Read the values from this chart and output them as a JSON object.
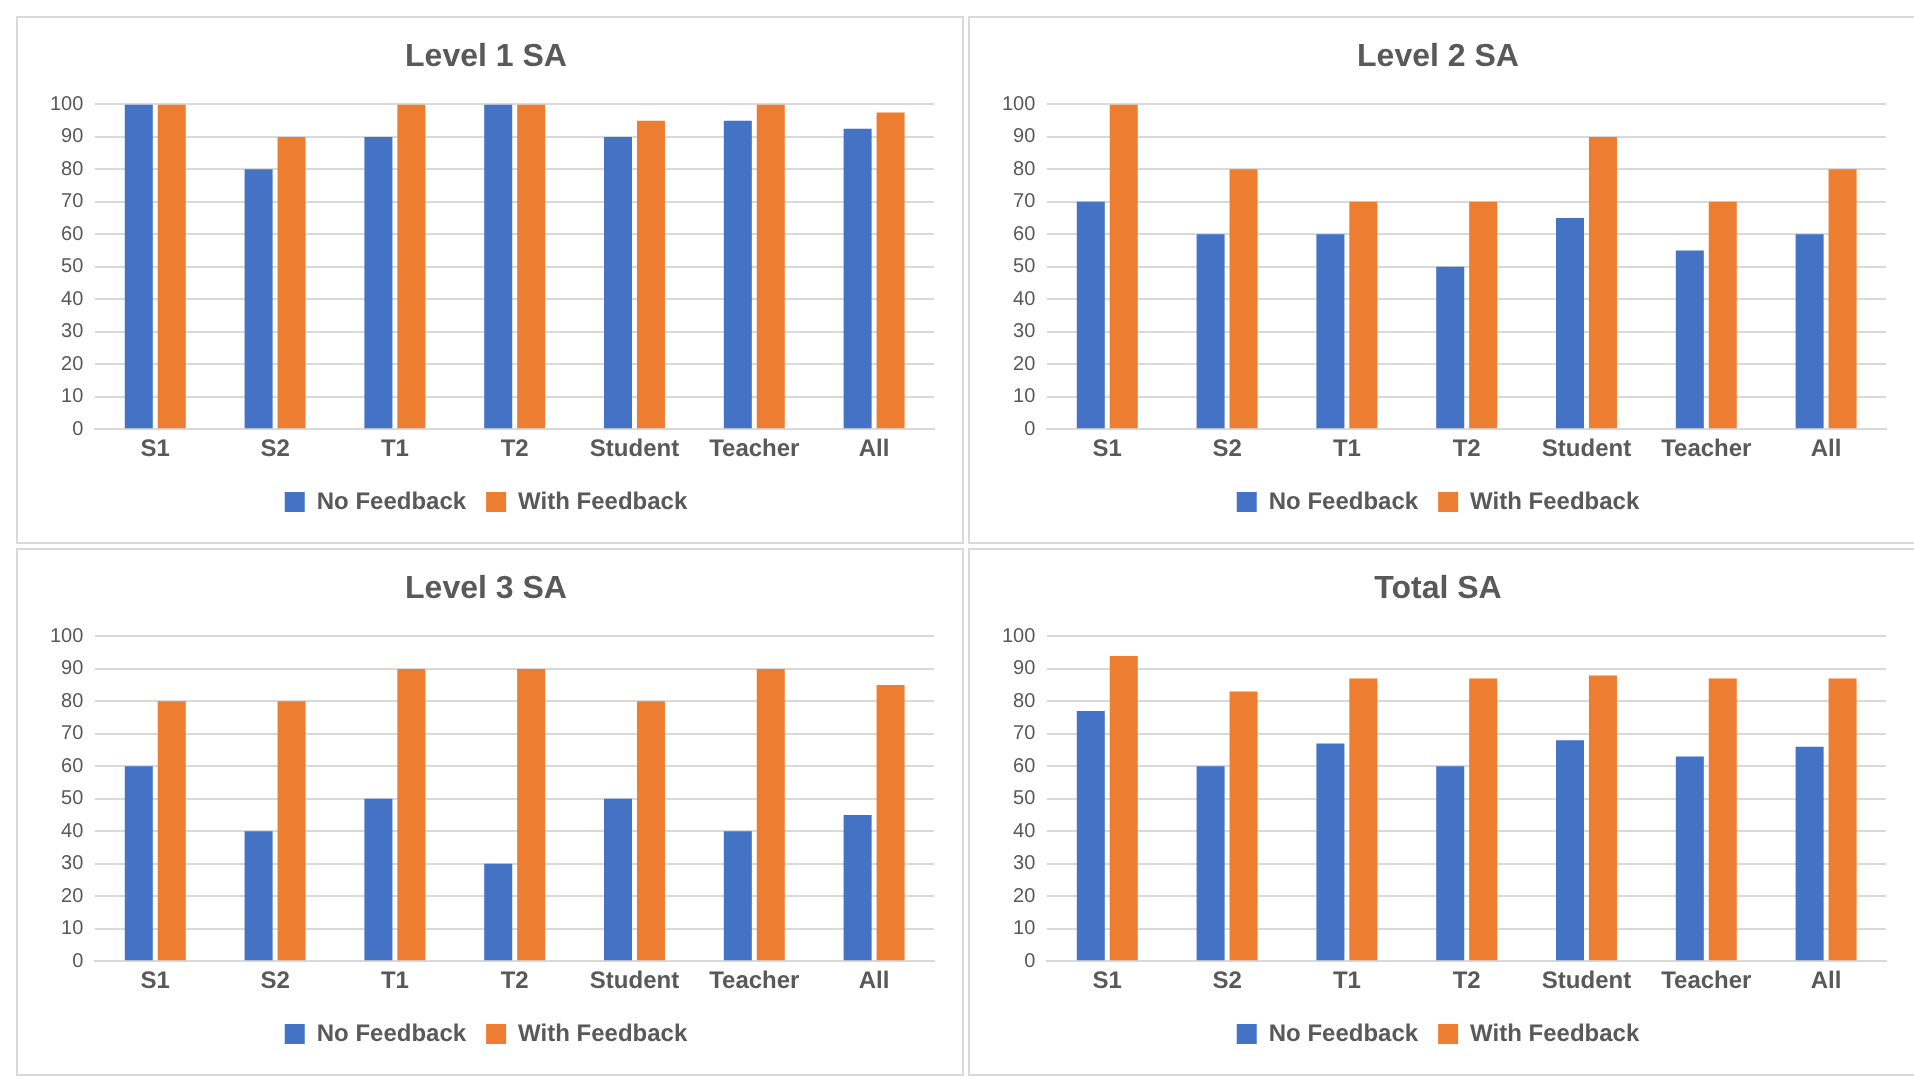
{
  "chart_data": [
    {
      "type": "bar",
      "title": "Level 1 SA",
      "categories": [
        "S1",
        "S2",
        "T1",
        "T2",
        "Student",
        "Teacher",
        "All"
      ],
      "series": [
        {
          "name": "No Feedback",
          "color": "#4472c4",
          "values": [
            100,
            80,
            90,
            100,
            90,
            95,
            92.5
          ]
        },
        {
          "name": "With Feedback",
          "color": "#ed7d31",
          "values": [
            100,
            90,
            100,
            100,
            95,
            100,
            97.5
          ]
        }
      ],
      "ylim": [
        0,
        100
      ],
      "yticks": [
        0,
        10,
        20,
        30,
        40,
        50,
        60,
        70,
        80,
        90,
        100
      ],
      "grid": "y",
      "legend": "bottom"
    },
    {
      "type": "bar",
      "title": "Level 2 SA",
      "categories": [
        "S1",
        "S2",
        "T1",
        "T2",
        "Student",
        "Teacher",
        "All"
      ],
      "series": [
        {
          "name": "No Feedback",
          "color": "#4472c4",
          "values": [
            70,
            60,
            60,
            50,
            65,
            55,
            60
          ]
        },
        {
          "name": "With Feedback",
          "color": "#ed7d31",
          "values": [
            100,
            80,
            70,
            70,
            90,
            70,
            80
          ]
        }
      ],
      "ylim": [
        0,
        100
      ],
      "yticks": [
        0,
        10,
        20,
        30,
        40,
        50,
        60,
        70,
        80,
        90,
        100
      ],
      "grid": "y",
      "legend": "bottom"
    },
    {
      "type": "bar",
      "title": "Level 3 SA",
      "categories": [
        "S1",
        "S2",
        "T1",
        "T2",
        "Student",
        "Teacher",
        "All"
      ],
      "series": [
        {
          "name": "No Feedback",
          "color": "#4472c4",
          "values": [
            60,
            40,
            50,
            30,
            50,
            40,
            45
          ]
        },
        {
          "name": "With Feedback",
          "color": "#ed7d31",
          "values": [
            80,
            80,
            90,
            90,
            80,
            90,
            85
          ]
        }
      ],
      "ylim": [
        0,
        100
      ],
      "yticks": [
        0,
        10,
        20,
        30,
        40,
        50,
        60,
        70,
        80,
        90,
        100
      ],
      "grid": "y",
      "legend": "bottom"
    },
    {
      "type": "bar",
      "title": "Total SA",
      "categories": [
        "S1",
        "S2",
        "T1",
        "T2",
        "Student",
        "Teacher",
        "All"
      ],
      "series": [
        {
          "name": "No Feedback",
          "color": "#4472c4",
          "values": [
            77,
            60,
            67,
            60,
            68,
            63,
            66
          ]
        },
        {
          "name": "With Feedback",
          "color": "#ed7d31",
          "values": [
            94,
            83,
            87,
            87,
            88,
            87,
            87
          ]
        }
      ],
      "ylim": [
        0,
        100
      ],
      "yticks": [
        0,
        10,
        20,
        30,
        40,
        50,
        60,
        70,
        80,
        90,
        100
      ],
      "grid": "y",
      "legend": "bottom"
    }
  ]
}
